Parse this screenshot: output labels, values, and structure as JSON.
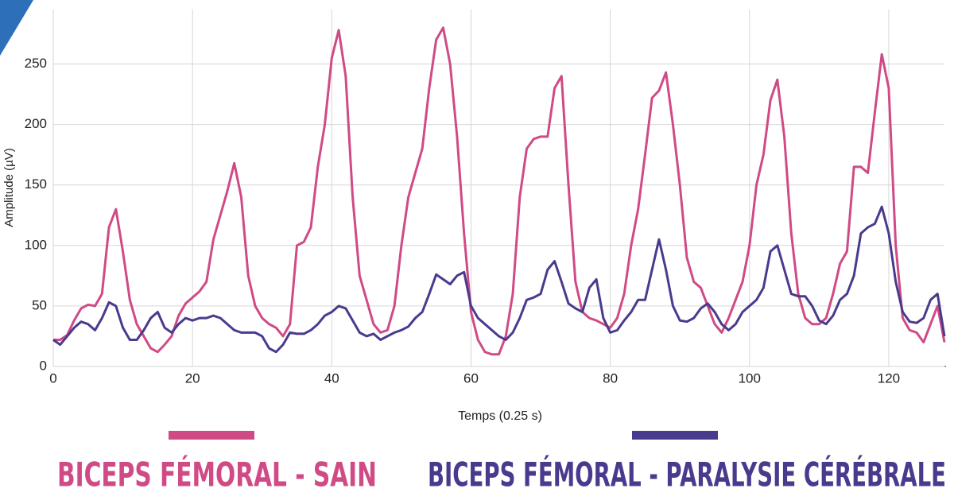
{
  "chart_data": {
    "type": "line",
    "x_label": "Temps (0.25 s)",
    "y_label": "Amplitude (µV)",
    "x": [
      0,
      1,
      2,
      3,
      4,
      5,
      6,
      7,
      8,
      9,
      10,
      11,
      12,
      13,
      14,
      15,
      16,
      17,
      18,
      19,
      20,
      21,
      22,
      23,
      24,
      25,
      26,
      27,
      28,
      29,
      30,
      31,
      32,
      33,
      34,
      35,
      36,
      37,
      38,
      39,
      40,
      41,
      42,
      43,
      44,
      45,
      46,
      47,
      48,
      49,
      50,
      51,
      52,
      53,
      54,
      55,
      56,
      57,
      58,
      59,
      60,
      61,
      62,
      63,
      64,
      65,
      66,
      67,
      68,
      69,
      70,
      71,
      72,
      73,
      74,
      75,
      76,
      77,
      78,
      79,
      80,
      81,
      82,
      83,
      84,
      85,
      86,
      87,
      88,
      89,
      90,
      91,
      92,
      93,
      94,
      95,
      96,
      97,
      98,
      99,
      100,
      101,
      102,
      103,
      104,
      105,
      106,
      107,
      108,
      109,
      110,
      111,
      112,
      113,
      114,
      115,
      116,
      117,
      118,
      119,
      120,
      121,
      122,
      123,
      124,
      125,
      126,
      127,
      128
    ],
    "series": [
      {
        "name": "BICEPS FÉMORAL - SAIN",
        "color": "#d04a86",
        "values": [
          22,
          22,
          26,
          38,
          48,
          51,
          50,
          60,
          115,
          130,
          95,
          55,
          35,
          25,
          15,
          12,
          18,
          25,
          42,
          52,
          57,
          62,
          70,
          105,
          125,
          145,
          168,
          140,
          75,
          50,
          40,
          35,
          32,
          25,
          35,
          100,
          103,
          115,
          165,
          200,
          255,
          278,
          240,
          140,
          75,
          55,
          35,
          28,
          30,
          50,
          100,
          140,
          160,
          180,
          230,
          270,
          280,
          250,
          190,
          110,
          45,
          22,
          12,
          10,
          10,
          25,
          60,
          140,
          180,
          188,
          190,
          190,
          230,
          240,
          150,
          70,
          45,
          40,
          38,
          35,
          32,
          40,
          60,
          100,
          130,
          175,
          222,
          228,
          243,
          200,
          150,
          90,
          70,
          65,
          50,
          35,
          28,
          40,
          55,
          70,
          100,
          150,
          175,
          220,
          237,
          190,
          110,
          60,
          40,
          35,
          35,
          40,
          60,
          85,
          95,
          165,
          165,
          160,
          210,
          258,
          230,
          100,
          40,
          30,
          28,
          20,
          35,
          50,
          20
        ]
      },
      {
        "name": "BICEPS FÉMORAL - PARALYSIE CÉRÉBRALE",
        "color": "#4a3a8e",
        "values": [
          22,
          18,
          25,
          32,
          37,
          35,
          30,
          40,
          53,
          50,
          32,
          22,
          22,
          30,
          40,
          45,
          32,
          28,
          35,
          40,
          38,
          40,
          40,
          42,
          40,
          35,
          30,
          28,
          28,
          28,
          25,
          15,
          12,
          18,
          28,
          27,
          27,
          30,
          35,
          42,
          45,
          50,
          48,
          38,
          28,
          25,
          27,
          22,
          25,
          28,
          30,
          33,
          40,
          45,
          60,
          76,
          72,
          68,
          75,
          78,
          50,
          40,
          35,
          30,
          25,
          22,
          28,
          40,
          55,
          57,
          60,
          80,
          87,
          70,
          52,
          48,
          45,
          65,
          72,
          40,
          28,
          30,
          38,
          45,
          55,
          55,
          80,
          105,
          80,
          50,
          38,
          37,
          40,
          48,
          52,
          45,
          35,
          30,
          35,
          45,
          50,
          55,
          65,
          95,
          100,
          80,
          60,
          58,
          58,
          50,
          38,
          35,
          42,
          55,
          60,
          75,
          110,
          115,
          118,
          132,
          110,
          70,
          45,
          37,
          36,
          40,
          55,
          60,
          25
        ]
      }
    ],
    "xlim": [
      0,
      128
    ],
    "ylim": [
      0,
      295
    ],
    "xticks": [
      0,
      20,
      40,
      60,
      80,
      100,
      120
    ],
    "yticks": [
      0,
      50,
      100,
      150,
      200,
      250
    ],
    "grid": true
  }
}
